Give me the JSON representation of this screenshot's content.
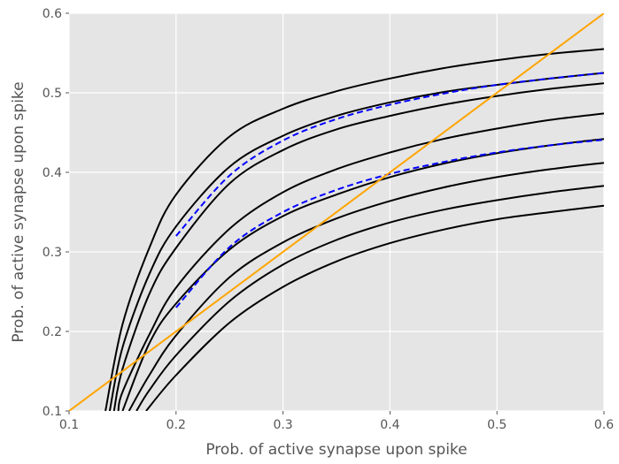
{
  "chart_data": {
    "type": "line",
    "title": "",
    "xlabel": "Prob. of active synapse upon spike",
    "ylabel": "Prob. of active synapse upon spike",
    "xlim": [
      0.1,
      0.6
    ],
    "ylim": [
      0.1,
      0.6
    ],
    "xticks": [
      0.1,
      0.2,
      0.3,
      0.4,
      0.5,
      0.6
    ],
    "yticks": [
      0.1,
      0.2,
      0.3,
      0.4,
      0.5,
      0.6
    ],
    "xtick_labels": [
      "0.1",
      "0.2",
      "0.3",
      "0.4",
      "0.5",
      "0.6"
    ],
    "ytick_labels": [
      "0.1",
      "0.2",
      "0.3",
      "0.4",
      "0.5",
      "0.6"
    ],
    "grid": true,
    "legend": "none",
    "colors": {
      "background": "#e5e5e5",
      "grid": "#ffffff",
      "curves": "#000000",
      "dashed": "#0000ff",
      "diagonal": "#ffa500",
      "text": "#555555"
    },
    "series": [
      {
        "style": "solid",
        "color": "#000000",
        "x": [
          0.134,
          0.15,
          0.175,
          0.2,
          0.25,
          0.3,
          0.35,
          0.4,
          0.45,
          0.5,
          0.55,
          0.6
        ],
        "y": [
          0.1,
          0.209,
          0.305,
          0.372,
          0.445,
          0.48,
          0.502,
          0.518,
          0.531,
          0.541,
          0.549,
          0.555
        ]
      },
      {
        "style": "solid",
        "color": "#000000",
        "x": [
          0.138,
          0.15,
          0.175,
          0.2,
          0.25,
          0.3,
          0.35,
          0.4,
          0.45,
          0.5,
          0.55,
          0.6
        ],
        "y": [
          0.1,
          0.18,
          0.272,
          0.332,
          0.407,
          0.446,
          0.471,
          0.488,
          0.501,
          0.51,
          0.518,
          0.525
        ]
      },
      {
        "style": "solid",
        "color": "#000000",
        "x": [
          0.142,
          0.15,
          0.175,
          0.2,
          0.25,
          0.3,
          0.35,
          0.4,
          0.45,
          0.5,
          0.55,
          0.6
        ],
        "y": [
          0.1,
          0.153,
          0.247,
          0.305,
          0.386,
          0.428,
          0.454,
          0.471,
          0.485,
          0.496,
          0.505,
          0.512
        ]
      },
      {
        "style": "solid",
        "color": "#000000",
        "x": [
          0.146,
          0.15,
          0.175,
          0.2,
          0.25,
          0.3,
          0.35,
          0.4,
          0.45,
          0.5,
          0.55,
          0.6
        ],
        "y": [
          0.1,
          0.124,
          0.196,
          0.255,
          0.329,
          0.375,
          0.404,
          0.425,
          0.442,
          0.455,
          0.466,
          0.474
        ]
      },
      {
        "style": "solid",
        "color": "#000000",
        "x": [
          0.15,
          0.175,
          0.2,
          0.25,
          0.3,
          0.35,
          0.4,
          0.45,
          0.5,
          0.55,
          0.6
        ],
        "y": [
          0.1,
          0.185,
          0.235,
          0.303,
          0.345,
          0.372,
          0.394,
          0.411,
          0.424,
          0.434,
          0.442
        ]
      },
      {
        "style": "solid",
        "color": "#000000",
        "x": [
          0.156,
          0.175,
          0.2,
          0.25,
          0.3,
          0.35,
          0.4,
          0.45,
          0.5,
          0.55,
          0.6
        ],
        "y": [
          0.1,
          0.145,
          0.195,
          0.268,
          0.312,
          0.342,
          0.364,
          0.381,
          0.394,
          0.404,
          0.412
        ]
      },
      {
        "style": "solid",
        "color": "#000000",
        "x": [
          0.163,
          0.175,
          0.2,
          0.25,
          0.3,
          0.35,
          0.4,
          0.45,
          0.5,
          0.55,
          0.6
        ],
        "y": [
          0.1,
          0.126,
          0.17,
          0.238,
          0.284,
          0.315,
          0.337,
          0.353,
          0.365,
          0.375,
          0.383
        ]
      },
      {
        "style": "solid",
        "color": "#000000",
        "x": [
          0.172,
          0.2,
          0.25,
          0.3,
          0.35,
          0.4,
          0.45,
          0.5,
          0.55,
          0.6
        ],
        "y": [
          0.1,
          0.145,
          0.211,
          0.256,
          0.288,
          0.311,
          0.328,
          0.341,
          0.35,
          0.358
        ]
      },
      {
        "style": "dashed",
        "color": "#0000ff",
        "x": [
          0.2,
          0.25,
          0.3,
          0.35,
          0.4,
          0.45,
          0.5,
          0.55,
          0.6
        ],
        "y": [
          0.32,
          0.396,
          0.44,
          0.467,
          0.485,
          0.499,
          0.51,
          0.518,
          0.525
        ]
      },
      {
        "style": "dashed",
        "color": "#0000ff",
        "x": [
          0.2,
          0.25,
          0.3,
          0.35,
          0.4,
          0.45,
          0.5,
          0.55,
          0.6
        ],
        "y": [
          0.23,
          0.306,
          0.35,
          0.378,
          0.398,
          0.413,
          0.425,
          0.434,
          0.441
        ]
      },
      {
        "style": "solid",
        "color": "#ffa500",
        "x": [
          0.1,
          0.6
        ],
        "y": [
          0.1,
          0.6
        ]
      }
    ]
  }
}
